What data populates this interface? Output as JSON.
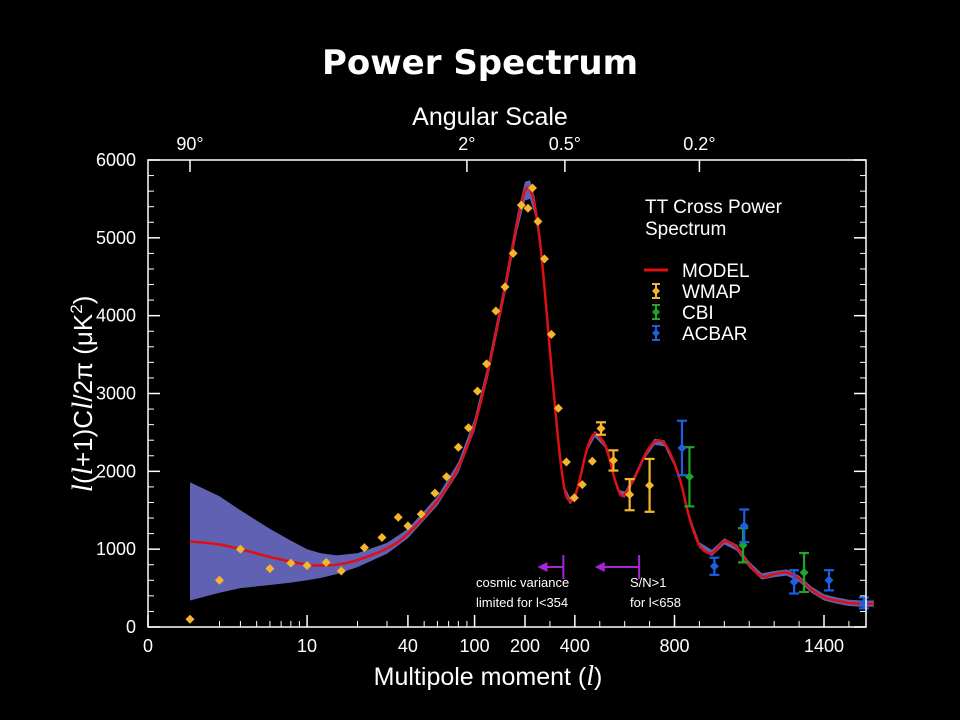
{
  "chart_data": {
    "type": "scatter",
    "title": "Power Spectrum",
    "top_axis_label": "Angular Scale",
    "top_ticks": [
      {
        "label": "90°",
        "l": 2
      },
      {
        "label": "2°",
        "l": 90
      },
      {
        "label": "0.5°",
        "l": 360
      },
      {
        "label": "0.2°",
        "l": 900
      }
    ],
    "xlabel": "Multipole moment (",
    "xlabel_italic": "l",
    "xlabel_end": ")",
    "ylabel_parts": [
      "l",
      "(",
      "l",
      "+1)C",
      "l",
      "/2π (μK",
      "2",
      ")"
    ],
    "x_ticks": [
      {
        "label": "0",
        "l": 0
      },
      {
        "label": "10",
        "l": 10
      },
      {
        "label": "40",
        "l": 40
      },
      {
        "label": "100",
        "l": 100
      },
      {
        "label": "200",
        "l": 200
      },
      {
        "label": "400",
        "l": 400
      },
      {
        "label": "800",
        "l": 800
      },
      {
        "label": "1400",
        "l": 1400
      }
    ],
    "y_ticks": [
      0,
      1000,
      2000,
      3000,
      4000,
      5000,
      6000
    ],
    "ylim": [
      0,
      6000
    ],
    "legend": {
      "title_lines": [
        "TT Cross Power",
        "Spectrum"
      ],
      "placement": "top-right",
      "entries": [
        {
          "name": "MODEL",
          "kind": "line",
          "color": "#dd1111"
        },
        {
          "name": "WMAP",
          "kind": "errorbar",
          "color": "#f5b52c"
        },
        {
          "name": "CBI",
          "kind": "errorbar",
          "color": "#1fa62a"
        },
        {
          "name": "ACBAR",
          "kind": "errorbar",
          "color": "#1c5fe0"
        }
      ]
    },
    "annotations": [
      {
        "lines": [
          "cosmic variance",
          "limited for  l<354"
        ],
        "arrow_from_l": 354,
        "arrow_to_l": 250
      },
      {
        "lines": [
          "S/N>1",
          "for  l<658"
        ],
        "arrow_from_l": 658,
        "arrow_to_l": 480
      }
    ],
    "model": {
      "name": "MODEL",
      "color": "#dd1111",
      "band_color": "#6b6cc6",
      "l": [
        2,
        3,
        4,
        6,
        8,
        10,
        12,
        15,
        20,
        30,
        40,
        60,
        80,
        100,
        120,
        150,
        180,
        200,
        220,
        240,
        260,
        280,
        300,
        320,
        340,
        360,
        380,
        400,
        420,
        450,
        480,
        520,
        540,
        560,
        580,
        600,
        640,
        680,
        720,
        760,
        800,
        830,
        860,
        900,
        950,
        1000,
        1050,
        1100,
        1150,
        1200,
        1250,
        1300,
        1350,
        1400,
        1450,
        1500,
        1550,
        1600
      ],
      "value": [
        1100,
        1060,
        1000,
        900,
        840,
        800,
        790,
        800,
        860,
        1010,
        1200,
        1620,
        2050,
        2600,
        3280,
        4300,
        5200,
        5600,
        5620,
        5400,
        4950,
        4300,
        3550,
        2850,
        2200,
        1750,
        1620,
        1680,
        1900,
        2300,
        2480,
        2350,
        2150,
        1900,
        1720,
        1700,
        1920,
        2200,
        2380,
        2360,
        2100,
        1800,
        1400,
        1050,
        950,
        1100,
        1020,
        800,
        650,
        680,
        700,
        620,
        480,
        380,
        340,
        310,
        300,
        300
      ],
      "band_half": [
        760,
        620,
        500,
        360,
        270,
        200,
        160,
        120,
        90,
        70,
        60,
        60,
        70,
        80,
        90,
        100,
        110,
        120,
        120,
        110,
        100,
        90,
        80,
        70,
        60,
        50,
        45,
        40,
        40,
        40,
        40,
        40,
        40,
        40,
        40,
        40,
        40,
        40,
        40,
        40,
        40,
        40,
        40,
        40,
        40,
        40,
        40,
        40,
        40,
        40,
        40,
        40,
        40,
        40,
        40,
        40,
        40,
        40
      ]
    },
    "series": [
      {
        "name": "WMAP",
        "color": "#f5b52c",
        "points": [
          {
            "l": 2,
            "v": 100,
            "err": 0
          },
          {
            "l": 3,
            "v": 600,
            "err": 0
          },
          {
            "l": 4,
            "v": 1000,
            "err": 0
          },
          {
            "l": 6,
            "v": 750,
            "err": 0
          },
          {
            "l": 8,
            "v": 820,
            "err": 0
          },
          {
            "l": 10,
            "v": 790,
            "err": 0
          },
          {
            "l": 13,
            "v": 830,
            "err": 0
          },
          {
            "l": 16,
            "v": 720,
            "err": 0
          },
          {
            "l": 22,
            "v": 1020,
            "err": 0
          },
          {
            "l": 28,
            "v": 1150,
            "err": 0
          },
          {
            "l": 35,
            "v": 1410,
            "err": 0
          },
          {
            "l": 40,
            "v": 1300,
            "err": 0
          },
          {
            "l": 48,
            "v": 1450,
            "err": 0
          },
          {
            "l": 58,
            "v": 1720,
            "err": 0
          },
          {
            "l": 68,
            "v": 1930,
            "err": 0
          },
          {
            "l": 80,
            "v": 2310,
            "err": 0
          },
          {
            "l": 92,
            "v": 2560,
            "err": 0
          },
          {
            "l": 104,
            "v": 3030,
            "err": 0
          },
          {
            "l": 118,
            "v": 3380,
            "err": 0
          },
          {
            "l": 134,
            "v": 4060,
            "err": 0
          },
          {
            "l": 152,
            "v": 4370,
            "err": 0
          },
          {
            "l": 170,
            "v": 4800,
            "err": 0
          },
          {
            "l": 190,
            "v": 5420,
            "err": 0
          },
          {
            "l": 212,
            "v": 5380,
            "err": 0
          },
          {
            "l": 230,
            "v": 5640,
            "err": 0
          },
          {
            "l": 252,
            "v": 5210,
            "err": 0
          },
          {
            "l": 278,
            "v": 4730,
            "err": 0
          },
          {
            "l": 306,
            "v": 3760,
            "err": 0
          },
          {
            "l": 334,
            "v": 2810,
            "err": 0
          },
          {
            "l": 366,
            "v": 2120,
            "err": 0
          },
          {
            "l": 398,
            "v": 1660,
            "err": 0
          },
          {
            "l": 430,
            "v": 1830,
            "err": 0
          },
          {
            "l": 470,
            "v": 2130,
            "err": 0
          },
          {
            "l": 505,
            "v": 2550,
            "err": 80
          },
          {
            "l": 555,
            "v": 2140,
            "err": 130
          },
          {
            "l": 620,
            "v": 1700,
            "err": 200
          },
          {
            "l": 700,
            "v": 1820,
            "err": 340
          }
        ]
      },
      {
        "name": "CBI",
        "color": "#1fa62a",
        "points": [
          {
            "l": 860,
            "v": 1930,
            "err": 380
          },
          {
            "l": 1075,
            "v": 1050,
            "err": 220
          },
          {
            "l": 1320,
            "v": 700,
            "err": 250
          }
        ]
      },
      {
        "name": "ACBAR",
        "color": "#1c5fe0",
        "points": [
          {
            "l": 830,
            "v": 2300,
            "err": 350
          },
          {
            "l": 960,
            "v": 780,
            "err": 110
          },
          {
            "l": 1080,
            "v": 1300,
            "err": 210
          },
          {
            "l": 1280,
            "v": 580,
            "err": 150
          },
          {
            "l": 1420,
            "v": 600,
            "err": 130
          },
          {
            "l": 1560,
            "v": 310,
            "err": 70
          }
        ]
      }
    ]
  }
}
